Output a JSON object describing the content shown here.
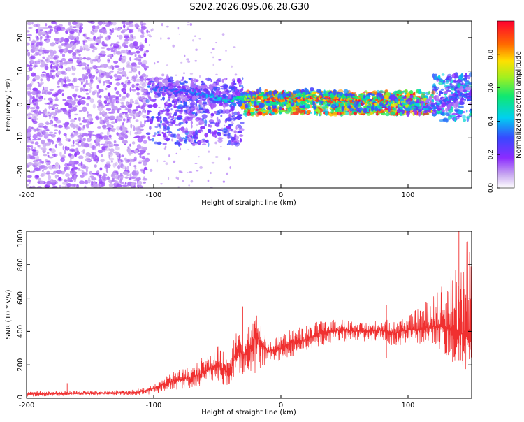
{
  "page_title": "S202.2026.095.06.28.G30",
  "chart_data": [
    {
      "type": "heatmap",
      "xlabel": "Height of straight line (km)",
      "ylabel": "Frequency (Hz)",
      "xlim": [
        -200,
        150
      ],
      "ylim": [
        -25,
        25
      ],
      "x_ticks": [
        -200,
        -100,
        0,
        100
      ],
      "y_ticks": [
        -20,
        -10,
        0,
        10,
        20
      ],
      "colorbar": {
        "label": "Normalized spectral amplitude",
        "range": [
          0,
          1
        ],
        "ticks": [
          0.0,
          0.2,
          0.4,
          0.6,
          0.8
        ],
        "tick_labels": [
          "0.0",
          "0.2",
          "0.4",
          "0.6",
          "0.8"
        ]
      },
      "regions": [
        {
          "x_range": [
            -200,
            -105
          ],
          "freq_range": [
            -25,
            25
          ],
          "amplitude": 0.1,
          "description": "broadband noise"
        },
        {
          "x_range": [
            -105,
            -30
          ],
          "freq_range": [
            -12,
            8
          ],
          "amplitude": 0.2
        },
        {
          "x_range": [
            -30,
            120
          ],
          "freq_range": [
            -3,
            4
          ],
          "amplitude": 0.6
        },
        {
          "x_range": [
            120,
            150
          ],
          "freq_range": [
            -5,
            9
          ],
          "amplitude": 0.3
        }
      ],
      "ridge": {
        "x": [
          -100,
          -80,
          -60,
          -40,
          -30,
          -20,
          0,
          20,
          40,
          60,
          80,
          100,
          120,
          135,
          150
        ],
        "freq": [
          5,
          4,
          3,
          1,
          2,
          2,
          1,
          2,
          1.5,
          1,
          0.5,
          0,
          -1,
          2,
          3
        ],
        "peak_amplitude": [
          0.3,
          0.3,
          0.35,
          0.5,
          0.55,
          0.85,
          0.9,
          0.9,
          0.85,
          0.9,
          0.85,
          0.6,
          0.35,
          0.35,
          0.3
        ]
      },
      "grid": false
    },
    {
      "type": "line",
      "xlabel": "Height of straight line (km)",
      "ylabel": "SNR (10 * v/v)",
      "xlim": [
        -200,
        150
      ],
      "ylim": [
        0,
        1000
      ],
      "x_ticks": [
        -200,
        -100,
        0,
        100
      ],
      "y_ticks": [
        0,
        200,
        400,
        600,
        800,
        1000
      ],
      "color": "#f03030",
      "series": [
        {
          "x": [
            -200,
            -180,
            -160,
            -140,
            -120,
            -110,
            -100,
            -90,
            -80,
            -70,
            -60,
            -50,
            -40,
            -35,
            -30,
            -25,
            -20,
            -10,
            0,
            10,
            20,
            30,
            40,
            50,
            60,
            70,
            80,
            90,
            100,
            110,
            120,
            130,
            140,
            145,
            150
          ],
          "y": [
            25,
            28,
            30,
            30,
            32,
            40,
            60,
            90,
            110,
            120,
            160,
            200,
            150,
            300,
            260,
            280,
            380,
            280,
            300,
            340,
            350,
            390,
            400,
            410,
            400,
            400,
            410,
            390,
            410,
            410,
            430,
            430,
            380,
            390,
            330
          ],
          "envelope_low": [
            10,
            12,
            15,
            15,
            15,
            20,
            25,
            40,
            55,
            60,
            80,
            100,
            60,
            150,
            120,
            160,
            150,
            200,
            230,
            250,
            280,
            310,
            330,
            340,
            330,
            340,
            330,
            310,
            320,
            320,
            300,
            250,
            180,
            120,
            180
          ],
          "envelope_high": [
            40,
            45,
            45,
            45,
            50,
            60,
            80,
            130,
            180,
            190,
            260,
            320,
            230,
            450,
            320,
            450,
            520,
            340,
            380,
            420,
            440,
            460,
            470,
            470,
            450,
            460,
            470,
            470,
            490,
            560,
            620,
            700,
            900,
            1000,
            950
          ],
          "spikes": [
            {
              "x": -168,
              "y": 90
            },
            {
              "x": -50,
              "y": 310
            },
            {
              "x": -30,
              "y": 550
            },
            {
              "x": 83,
              "y": 560
            },
            {
              "x": 140,
              "y": 1000
            },
            {
              "x": 150,
              "y": 1000
            }
          ]
        }
      ],
      "grid": false
    }
  ]
}
